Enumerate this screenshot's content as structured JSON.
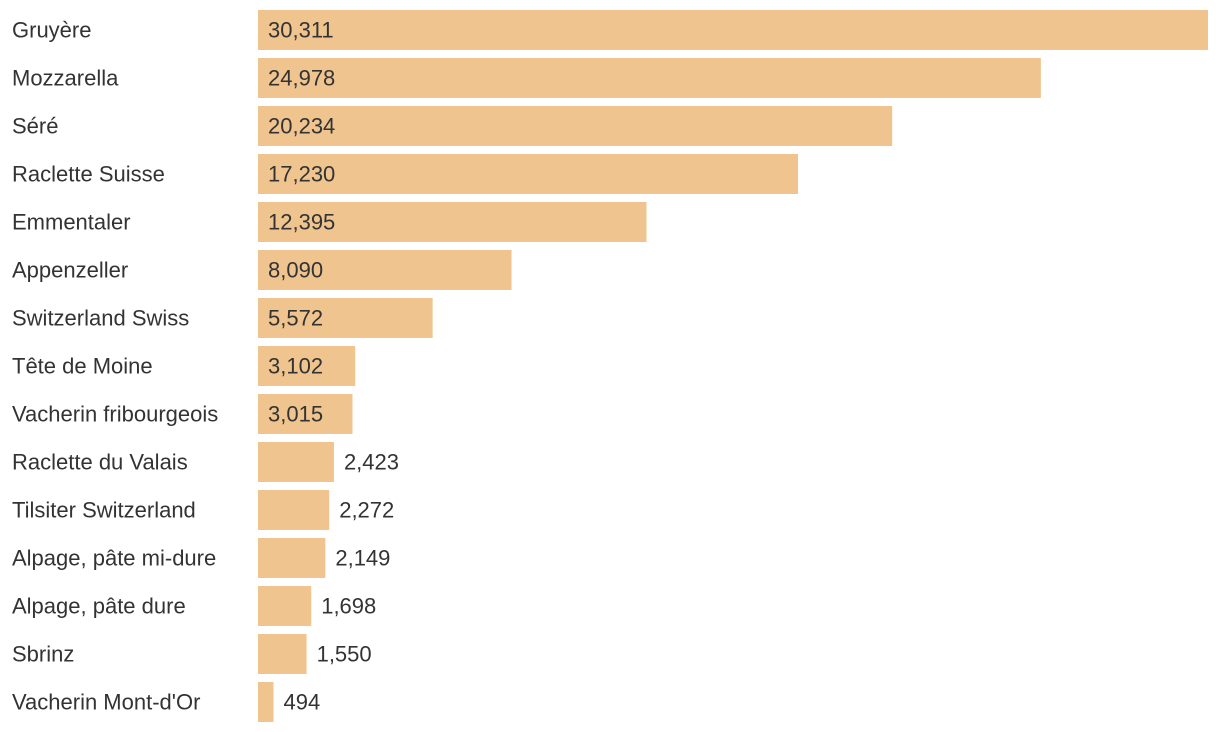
{
  "chart_data": {
    "type": "bar",
    "orientation": "horizontal",
    "categories": [
      "Gruyère",
      "Mozzarella",
      "Séré",
      "Raclette Suisse",
      "Emmentaler",
      "Appenzeller",
      "Switzerland Swiss",
      "Tête de Moine",
      "Vacherin fribourgeois",
      "Raclette du Valais",
      "Tilsiter Switzerland",
      "Alpage, pâte mi-dure",
      "Alpage, pâte dure",
      "Sbrinz",
      "Vacherin Mont-d'Or"
    ],
    "values": [
      30311,
      24978,
      20234,
      17230,
      12395,
      8090,
      5572,
      3102,
      3015,
      2423,
      2272,
      2149,
      1698,
      1550,
      494
    ],
    "value_labels": [
      "30,311",
      "24,978",
      "20,234",
      "17,230",
      "12,395",
      "8,090",
      "5,572",
      "3,102",
      "3,015",
      "2,423",
      "2,272",
      "2,149",
      "1,698",
      "1,550",
      "494"
    ],
    "title": "",
    "xlabel": "",
    "ylabel": "",
    "xlim": [
      0,
      30311
    ],
    "grid": false,
    "legend": false,
    "colors": {
      "bar": "#efc48f",
      "text": "#333333"
    }
  }
}
